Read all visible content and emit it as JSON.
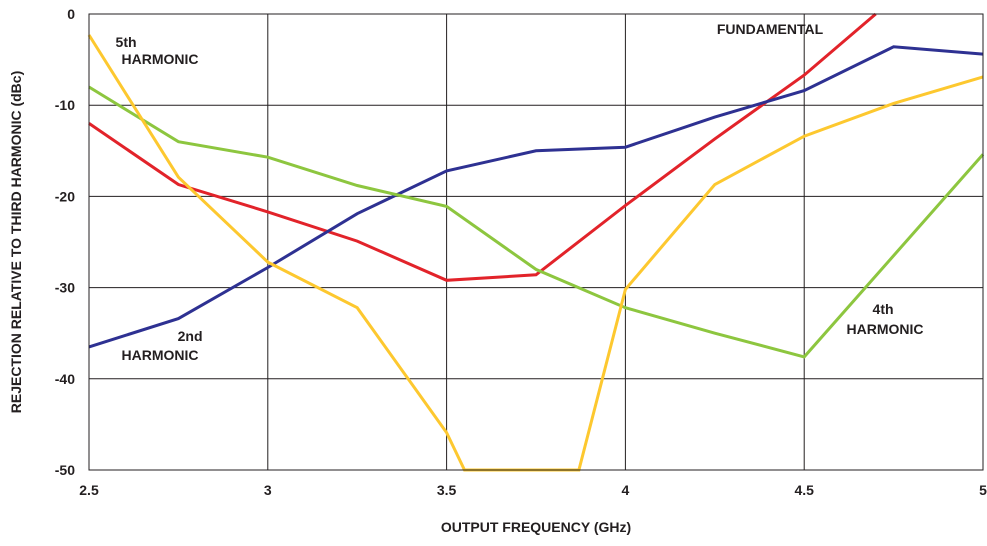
{
  "chart_data": {
    "type": "line",
    "title": "",
    "xlabel": "OUTPUT FREQUENCY (GHz)",
    "ylabel": "REJECTION RELATIVE TO THIRD HARMONIC (dBc)",
    "xlim": [
      2.5,
      5
    ],
    "ylim": [
      -50,
      0
    ],
    "x_ticks": [
      2.5,
      3,
      3.5,
      4,
      4.5,
      5
    ],
    "x_tick_labels": [
      "2.5",
      "3",
      "3.5",
      "4",
      "4.5",
      "5"
    ],
    "y_ticks": [
      0,
      -10,
      -20,
      -30,
      -40,
      -50
    ],
    "y_tick_labels": [
      "0",
      "-10",
      "-20",
      "-30",
      "-40",
      "-50"
    ],
    "grid": true,
    "series": [
      {
        "label_lines": [
          "FUNDAMENTAL"
        ],
        "color": "#e2232a",
        "points": [
          [
            2.5,
            -12
          ],
          [
            2.75,
            -18.7
          ],
          [
            3,
            -21.7
          ],
          [
            3.25,
            -24.9
          ],
          [
            3.5,
            -29.2
          ],
          [
            3.75,
            -28.6
          ],
          [
            4,
            -21
          ],
          [
            4.25,
            -13.7
          ],
          [
            4.5,
            -6.7
          ],
          [
            4.7,
            0
          ]
        ]
      },
      {
        "label_lines": [
          "2nd",
          "HARMONIC"
        ],
        "color": "#2e3192",
        "points": [
          [
            2.5,
            -36.5
          ],
          [
            2.75,
            -33.4
          ],
          [
            3,
            -27.8
          ],
          [
            3.25,
            -21.9
          ],
          [
            3.5,
            -17.2
          ],
          [
            3.75,
            -15
          ],
          [
            4,
            -14.6
          ],
          [
            4.25,
            -11.3
          ],
          [
            4.5,
            -8.4
          ],
          [
            4.75,
            -3.6
          ],
          [
            5,
            -4.4
          ]
        ]
      },
      {
        "label_lines": [
          "4th",
          "HARMONIC"
        ],
        "color": "#8dc63f",
        "points": [
          [
            2.5,
            -8
          ],
          [
            2.75,
            -14
          ],
          [
            3,
            -15.7
          ],
          [
            3.25,
            -18.8
          ],
          [
            3.5,
            -21.1
          ],
          [
            3.75,
            -28
          ],
          [
            4,
            -32.2
          ],
          [
            4.25,
            -35
          ],
          [
            4.5,
            -37.6
          ],
          [
            5,
            -15.4
          ]
        ]
      },
      {
        "label_lines": [
          "5th",
          "HARMONIC"
        ],
        "color": "#fdc82f",
        "points": [
          [
            2.5,
            -2.3
          ],
          [
            2.75,
            -17.9
          ],
          [
            3,
            -27.2
          ],
          [
            3.25,
            -32.2
          ],
          [
            3.5,
            -45.9
          ],
          [
            3.55,
            -50
          ],
          [
            3.87,
            -50
          ],
          [
            4,
            -30.2
          ],
          [
            4.25,
            -18.7
          ],
          [
            4.5,
            -13.4
          ],
          [
            4.75,
            -9.8
          ],
          [
            5,
            -6.9
          ]
        ]
      }
    ]
  }
}
